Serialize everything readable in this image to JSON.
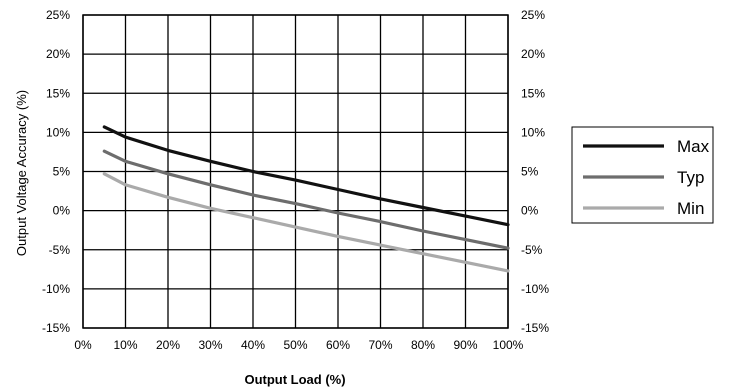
{
  "chart_data": {
    "type": "line",
    "xlabel": "Output Load (%)",
    "ylabel": "Output Voltage Accuracy (%)",
    "xlim": [
      0,
      100
    ],
    "ylim": [
      -15,
      25
    ],
    "x_ticks": [
      "0%",
      "10%",
      "20%",
      "30%",
      "40%",
      "50%",
      "60%",
      "70%",
      "80%",
      "90%",
      "100%"
    ],
    "y_ticks": [
      "25%",
      "20%",
      "15%",
      "10%",
      "5%",
      "0%",
      "-5%",
      "-10%",
      "-15%"
    ],
    "grid": true,
    "legend_position": "right",
    "series": [
      {
        "name": "Max",
        "color": "#111111",
        "x": [
          5,
          10,
          20,
          30,
          40,
          50,
          60,
          70,
          80,
          90,
          100
        ],
        "y": [
          10.7,
          9.4,
          7.7,
          6.3,
          5.0,
          3.9,
          2.7,
          1.5,
          0.4,
          -0.7,
          -1.8
        ]
      },
      {
        "name": "Typ",
        "color": "#6d6d6d",
        "x": [
          5,
          10,
          20,
          30,
          40,
          50,
          60,
          70,
          80,
          90,
          100
        ],
        "y": [
          7.6,
          6.3,
          4.7,
          3.3,
          2.0,
          0.9,
          -0.3,
          -1.4,
          -2.6,
          -3.7,
          -4.8
        ]
      },
      {
        "name": "Min",
        "color": "#aaaaaa",
        "x": [
          5,
          10,
          20,
          30,
          40,
          50,
          60,
          70,
          80,
          90,
          100
        ],
        "y": [
          4.7,
          3.3,
          1.7,
          0.3,
          -0.9,
          -2.1,
          -3.3,
          -4.4,
          -5.5,
          -6.6,
          -7.7
        ]
      }
    ]
  }
}
